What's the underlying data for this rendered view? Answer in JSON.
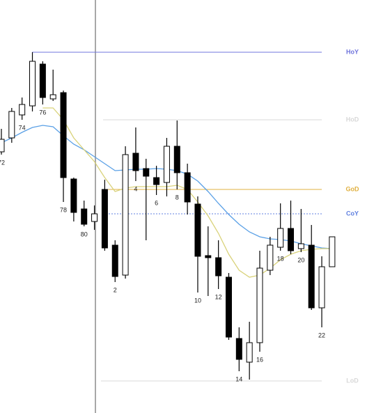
{
  "chart_data": {
    "type": "candlestick",
    "ylim": [
      0,
      593
    ],
    "open": [
      375,
      395,
      428,
      441,
      501,
      451,
      460,
      336,
      293,
      275,
      321,
      241,
      198,
      373,
      351,
      338,
      331,
      383,
      345,
      300,
      226,
      223,
      195,
      107,
      73,
      101,
      205,
      238,
      265,
      236,
      241,
      151,
      210
    ],
    "high": [
      408,
      438,
      453,
      518,
      505,
      493,
      463,
      338,
      305,
      298,
      335,
      248,
      383,
      410,
      365,
      355,
      395,
      420,
      358,
      311,
      268,
      248,
      201,
      123,
      131,
      233,
      253,
      301,
      305,
      293,
      270,
      225,
      253
    ],
    "low": [
      371,
      388,
      421,
      433,
      443,
      448,
      303,
      275,
      268,
      263,
      233,
      188,
      193,
      333,
      248,
      313,
      311,
      321,
      285,
      173,
      168,
      178,
      105,
      60,
      48,
      88,
      198,
      233,
      228,
      231,
      148,
      123,
      210
    ],
    "close": [
      393,
      433,
      443,
      505,
      453,
      457,
      338,
      288,
      271,
      286,
      237,
      196,
      371,
      348,
      340,
      328,
      383,
      345,
      303,
      225,
      223,
      197,
      109,
      77,
      101,
      208,
      241,
      265,
      233,
      243,
      151,
      210,
      253
    ],
    "labels": [
      "72",
      null,
      "74",
      null,
      "76",
      null,
      "78",
      null,
      "80",
      null,
      null,
      "2",
      null,
      "4",
      null,
      "6",
      null,
      "8",
      null,
      "10",
      null,
      "12",
      null,
      "14",
      null,
      "16",
      null,
      "18",
      null,
      "20",
      null,
      "22",
      null
    ],
    "series": [
      {
        "color": "#5aa0e6",
        "values": [
          388,
          395,
          403,
          410,
          413,
          411,
          398,
          386,
          378,
          368,
          358,
          348,
          349,
          350,
          350,
          351,
          350,
          348,
          343,
          333,
          318,
          301,
          285,
          271,
          260,
          253,
          250,
          249,
          247,
          243,
          240,
          237,
          236
        ]
      },
      {
        "color": "#d9d27a",
        "values": [
          null,
          null,
          null,
          null,
          438,
          438,
          421,
          395,
          378,
          361,
          338,
          318,
          323,
          325,
          325,
          325,
          325,
          327,
          321,
          303,
          283,
          258,
          228,
          205,
          195,
          198,
          208,
          220,
          228,
          233,
          235,
          236,
          236
        ]
      }
    ],
    "levels": [
      {
        "name": "HoY",
        "value": 518,
        "color": "#6f74dc"
      },
      {
        "name": "HoD",
        "value": 421,
        "color": "#d8d8d8"
      },
      {
        "name": "GoD",
        "value": 321,
        "color": "#e0b040"
      },
      {
        "name": "CoY",
        "value": 286,
        "color": "#5f7fe0",
        "dashed": true
      },
      {
        "name": "LoD",
        "value": 46,
        "color": "#d8d8d8"
      }
    ]
  }
}
